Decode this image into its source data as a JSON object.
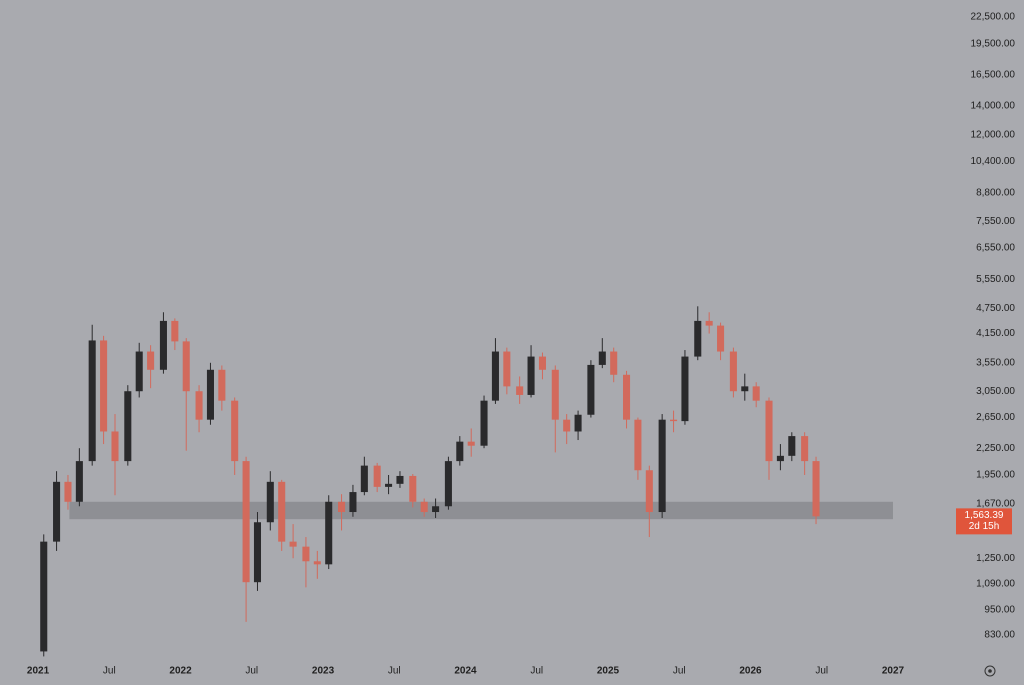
{
  "chart_data": {
    "type": "candlestick",
    "log_scale": true,
    "up_color": "#2a2a2c",
    "down_color": "#d26a5c",
    "zone_color": "#8e8f94",
    "last_color": "#e0553b",
    "xlim": [
      2020.733,
      2027.33
    ],
    "ylim": [
      726,
      24640
    ],
    "xticks": [
      {
        "value": 2021,
        "label": "2021"
      },
      {
        "value": 2021.5,
        "label": "Jul"
      },
      {
        "value": 2022,
        "label": "2022"
      },
      {
        "value": 2022.5,
        "label": "Jul"
      },
      {
        "value": 2023,
        "label": "2023"
      },
      {
        "value": 2023.5,
        "label": "Jul"
      },
      {
        "value": 2024,
        "label": "2024"
      },
      {
        "value": 2024.5,
        "label": "Jul"
      },
      {
        "value": 2025,
        "label": "2025"
      },
      {
        "value": 2025.5,
        "label": "Jul"
      },
      {
        "value": 2026,
        "label": "2026"
      },
      {
        "value": 2026.5,
        "label": "Jul"
      },
      {
        "value": 2027,
        "label": "2027"
      }
    ],
    "yticks": [
      {
        "value": 22500,
        "label": "22,500.00"
      },
      {
        "value": 19500,
        "label": "19,500.00"
      },
      {
        "value": 16500,
        "label": "16,500.00"
      },
      {
        "value": 14000,
        "label": "14,000.00"
      },
      {
        "value": 12000,
        "label": "12,000.00"
      },
      {
        "value": 10400,
        "label": "10,400.00"
      },
      {
        "value": 8800,
        "label": "8,800.00"
      },
      {
        "value": 7550,
        "label": "7,550.00"
      },
      {
        "value": 6550,
        "label": "6,550.00"
      },
      {
        "value": 5550,
        "label": "5,550.00"
      },
      {
        "value": 4750,
        "label": "4,750.00"
      },
      {
        "value": 4150,
        "label": "4,150.00"
      },
      {
        "value": 3550,
        "label": "3,550.00"
      },
      {
        "value": 3050,
        "label": "3,050.00"
      },
      {
        "value": 2650,
        "label": "2,650.00"
      },
      {
        "value": 2250,
        "label": "2,250.00"
      },
      {
        "value": 1950,
        "label": "1,950.00"
      },
      {
        "value": 1670,
        "label": "1,670.00"
      },
      {
        "value": 1250,
        "label": "1,250.00"
      },
      {
        "value": 1090,
        "label": "1,090.00"
      },
      {
        "value": 950,
        "label": "950.00"
      },
      {
        "value": 830,
        "label": "830.00"
      }
    ],
    "zone": {
      "low": 1540,
      "high": 1690,
      "from": 2021.22,
      "to": 2027.0
    },
    "last_price": {
      "value": 1563.39,
      "label": "1,563.39"
    },
    "countdown": "2d 15h",
    "x": [
      2021.04,
      2021.13,
      2021.21,
      2021.29,
      2021.38,
      2021.46,
      2021.54,
      2021.63,
      2021.71,
      2021.79,
      2021.88,
      2021.96,
      2022.04,
      2022.13,
      2022.21,
      2022.29,
      2022.38,
      2022.46,
      2022.54,
      2022.63,
      2022.71,
      2022.79,
      2022.88,
      2022.96,
      2023.04,
      2023.13,
      2023.21,
      2023.29,
      2023.38,
      2023.46,
      2023.54,
      2023.63,
      2023.71,
      2023.79,
      2023.88,
      2023.96,
      2024.04,
      2024.13,
      2024.21,
      2024.29,
      2024.38,
      2024.46,
      2024.54,
      2024.63,
      2024.71,
      2024.79,
      2024.88,
      2024.96,
      2025.04,
      2025.13,
      2025.21,
      2025.29,
      2025.38,
      2025.46,
      2025.54,
      2025.63,
      2025.71,
      2025.79,
      2025.88,
      2025.96,
      2026.04,
      2026.13,
      2026.21,
      2026.29,
      2026.38,
      2026.46
    ],
    "open": [
      760,
      1366,
      1880,
      1690,
      2100,
      4000,
      2460,
      2100,
      3050,
      3770,
      3420,
      4440,
      3980,
      3050,
      2620,
      3420,
      2900,
      2100,
      1100,
      1515,
      1880,
      1366,
      1330,
      1230,
      1210,
      1690,
      1600,
      1780,
      2050,
      1830,
      1860,
      1940,
      1690,
      1600,
      1650,
      2100,
      2330,
      2280,
      2900,
      3770,
      3130,
      2990,
      3670,
      3420,
      2620,
      2460,
      2690,
      3510,
      3770,
      3330,
      2620,
      2000,
      1600,
      2620,
      2600,
      3670,
      4440,
      4330,
      3770,
      3050,
      3130,
      2900,
      2100,
      2160,
      2400,
      2100
    ],
    "high": [
      1420,
      1990,
      1950,
      2250,
      4350,
      4100,
      2700,
      3150,
      3950,
      3900,
      4650,
      4500,
      4050,
      3150,
      3550,
      3500,
      2950,
      2150,
      1600,
      1990,
      1900,
      1500,
      1400,
      1300,
      1750,
      1760,
      1850,
      2150,
      2080,
      1950,
      1990,
      1960,
      1720,
      1720,
      2150,
      2400,
      2500,
      2980,
      4050,
      3850,
      3300,
      3900,
      3750,
      3500,
      2700,
      2750,
      3600,
      4050,
      3850,
      3400,
      2650,
      2050,
      2700,
      2750,
      3800,
      4800,
      4650,
      4400,
      3850,
      3350,
      3200,
      2950,
      2300,
      2450,
      2450,
      2150
    ],
    "low": [
      740,
      1300,
      1620,
      1650,
      2050,
      2300,
      1750,
      2050,
      2950,
      3100,
      3350,
      3800,
      2220,
      2450,
      2550,
      2750,
      1950,
      890,
      1050,
      1450,
      1300,
      1250,
      1070,
      1120,
      1180,
      1450,
      1560,
      1750,
      1780,
      1760,
      1820,
      1640,
      1560,
      1550,
      1620,
      2050,
      2150,
      2250,
      2850,
      3000,
      2850,
      2950,
      3250,
      2200,
      2300,
      2350,
      2650,
      3450,
      3200,
      2500,
      1900,
      1400,
      1550,
      2450,
      2550,
      3600,
      4150,
      3600,
      2950,
      2900,
      2800,
      1900,
      2000,
      2100,
      1950,
      1500
    ],
    "close": [
      1366,
      1880,
      1690,
      2100,
      4000,
      2460,
      2100,
      3050,
      3770,
      3420,
      4440,
      3980,
      3050,
      2620,
      3420,
      2900,
      2100,
      1100,
      1515,
      1880,
      1366,
      1330,
      1230,
      1210,
      1690,
      1600,
      1780,
      2050,
      1830,
      1860,
      1940,
      1690,
      1600,
      1650,
      2100,
      2330,
      2280,
      2900,
      3770,
      3130,
      2990,
      3670,
      3420,
      2620,
      2460,
      2690,
      3510,
      3770,
      3330,
      2620,
      2000,
      1600,
      2620,
      2600,
      3670,
      4440,
      4330,
      3770,
      3050,
      3130,
      2900,
      2100,
      2160,
      2400,
      2100,
      1563.39
    ]
  }
}
